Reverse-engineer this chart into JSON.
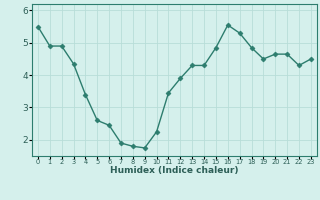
{
  "x": [
    0,
    1,
    2,
    3,
    4,
    5,
    6,
    7,
    8,
    9,
    10,
    11,
    12,
    13,
    14,
    15,
    16,
    17,
    18,
    19,
    20,
    21,
    22,
    23
  ],
  "y": [
    5.5,
    4.9,
    4.9,
    4.35,
    3.4,
    2.6,
    2.45,
    1.9,
    1.8,
    1.75,
    2.25,
    3.45,
    3.9,
    4.3,
    4.3,
    4.85,
    5.55,
    5.3,
    4.85,
    4.5,
    4.65,
    4.65,
    4.3,
    4.5
  ],
  "line_color": "#2d7d6e",
  "marker": "D",
  "marker_size": 2.5,
  "bg_color": "#d5f0ec",
  "grid_color": "#b8ddd8",
  "axis_color": "#2d7d6e",
  "tick_color": "#2d5f57",
  "xlabel": "Humidex (Indice chaleur)",
  "xlabel_fontsize": 6.5,
  "ylim": [
    1.5,
    6.2
  ],
  "xlim": [
    -0.5,
    23.5
  ],
  "yticks": [
    2,
    3,
    4,
    5,
    6
  ],
  "ytick_labels": [
    "2",
    "3",
    "4",
    "5",
    "6"
  ],
  "xtick_labels": [
    "0",
    "1",
    "2",
    "3",
    "4",
    "5",
    "6",
    "7",
    "8",
    "9",
    "10",
    "11",
    "12",
    "13",
    "14",
    "15",
    "16",
    "17",
    "18",
    "19",
    "20",
    "21",
    "22",
    "23"
  ],
  "linewidth": 1.0
}
